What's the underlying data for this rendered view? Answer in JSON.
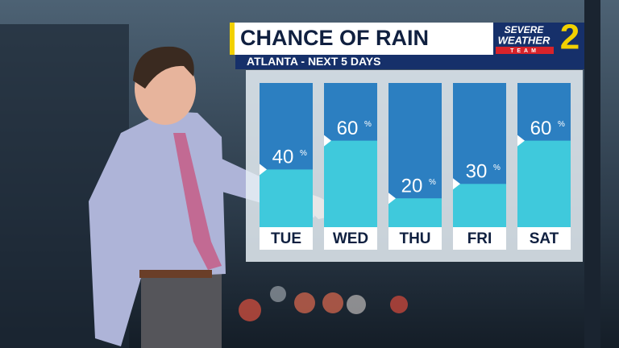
{
  "chart_data": {
    "type": "bar",
    "title": "CHANCE OF RAIN",
    "subtitle": "ATLANTA - NEXT 5 DAYS",
    "categories": [
      "TUE",
      "WED",
      "THU",
      "FRI",
      "SAT"
    ],
    "values": [
      40,
      60,
      20,
      30,
      60
    ],
    "unit": "%",
    "ylim": [
      0,
      100
    ],
    "color": "#3fc9dc"
  },
  "logo": {
    "line1": "SEVERE",
    "line2": "WEATHER",
    "line3": "TEAM",
    "number": "2"
  }
}
